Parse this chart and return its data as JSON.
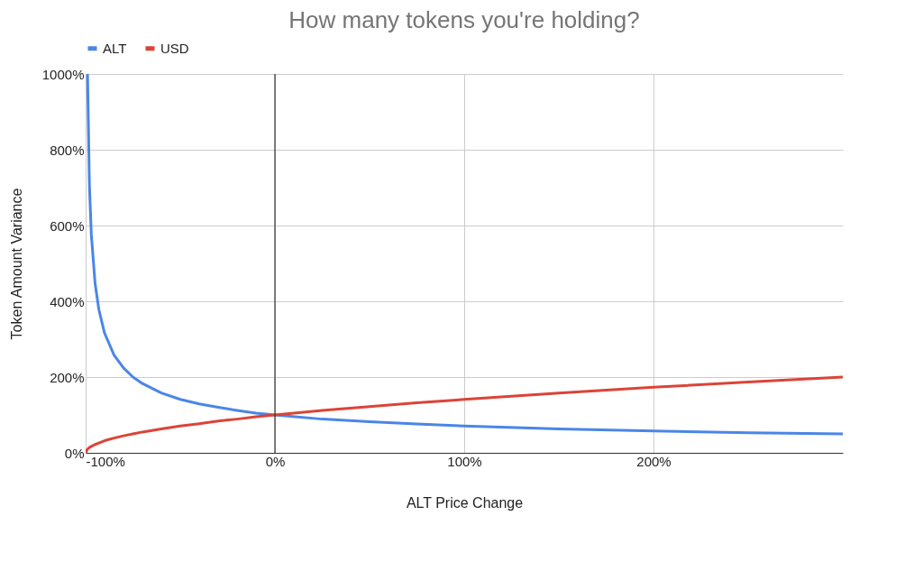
{
  "chart_data": {
    "type": "line",
    "title": "How many tokens you're holding?",
    "xlabel": "ALT Price Change",
    "ylabel": "Token Amount Variance",
    "xlim": [
      -100,
      300
    ],
    "ylim": [
      0,
      1000
    ],
    "xticks": [
      {
        "value": -100,
        "label": "-100%"
      },
      {
        "value": 0,
        "label": "0%"
      },
      {
        "value": 100,
        "label": "100%"
      },
      {
        "value": 200,
        "label": "200%"
      }
    ],
    "yticks": [
      {
        "value": 0,
        "label": "0%"
      },
      {
        "value": 200,
        "label": "200%"
      },
      {
        "value": 400,
        "label": "400%"
      },
      {
        "value": 600,
        "label": "600%"
      },
      {
        "value": 800,
        "label": "800%"
      },
      {
        "value": 1000,
        "label": "1000%"
      }
    ],
    "grid": true,
    "legend": "top",
    "line_style": "solid",
    "ref_lines": [
      {
        "axis": "x",
        "value": 0,
        "color": "#333333"
      }
    ],
    "series": [
      {
        "name": "ALT",
        "color": "#4a86e8",
        "x": [
          -99,
          -98,
          -97,
          -95,
          -93,
          -90,
          -85,
          -80,
          -75,
          -70,
          -60,
          -50,
          -40,
          -30,
          -20,
          -10,
          0,
          25,
          50,
          75,
          100,
          150,
          200,
          250,
          300
        ],
        "values": [
          1000,
          707,
          577,
          447,
          378,
          316,
          258,
          224,
          200,
          183,
          158,
          141,
          129,
          120,
          112,
          105,
          100,
          89,
          82,
          76,
          71,
          63,
          58,
          53,
          50
        ]
      },
      {
        "name": "USD",
        "color": "#db4437",
        "x": [
          -100,
          -99,
          -98,
          -97,
          -95,
          -93,
          -90,
          -85,
          -80,
          -75,
          -70,
          -60,
          -50,
          -40,
          -30,
          -20,
          -10,
          0,
          25,
          50,
          75,
          100,
          150,
          200,
          250,
          300
        ],
        "values": [
          0,
          10,
          14,
          17,
          22,
          26,
          32,
          39,
          45,
          50,
          55,
          63,
          71,
          77,
          84,
          89,
          95,
          100,
          112,
          122,
          132,
          141,
          158,
          173,
          187,
          200
        ]
      }
    ]
  }
}
